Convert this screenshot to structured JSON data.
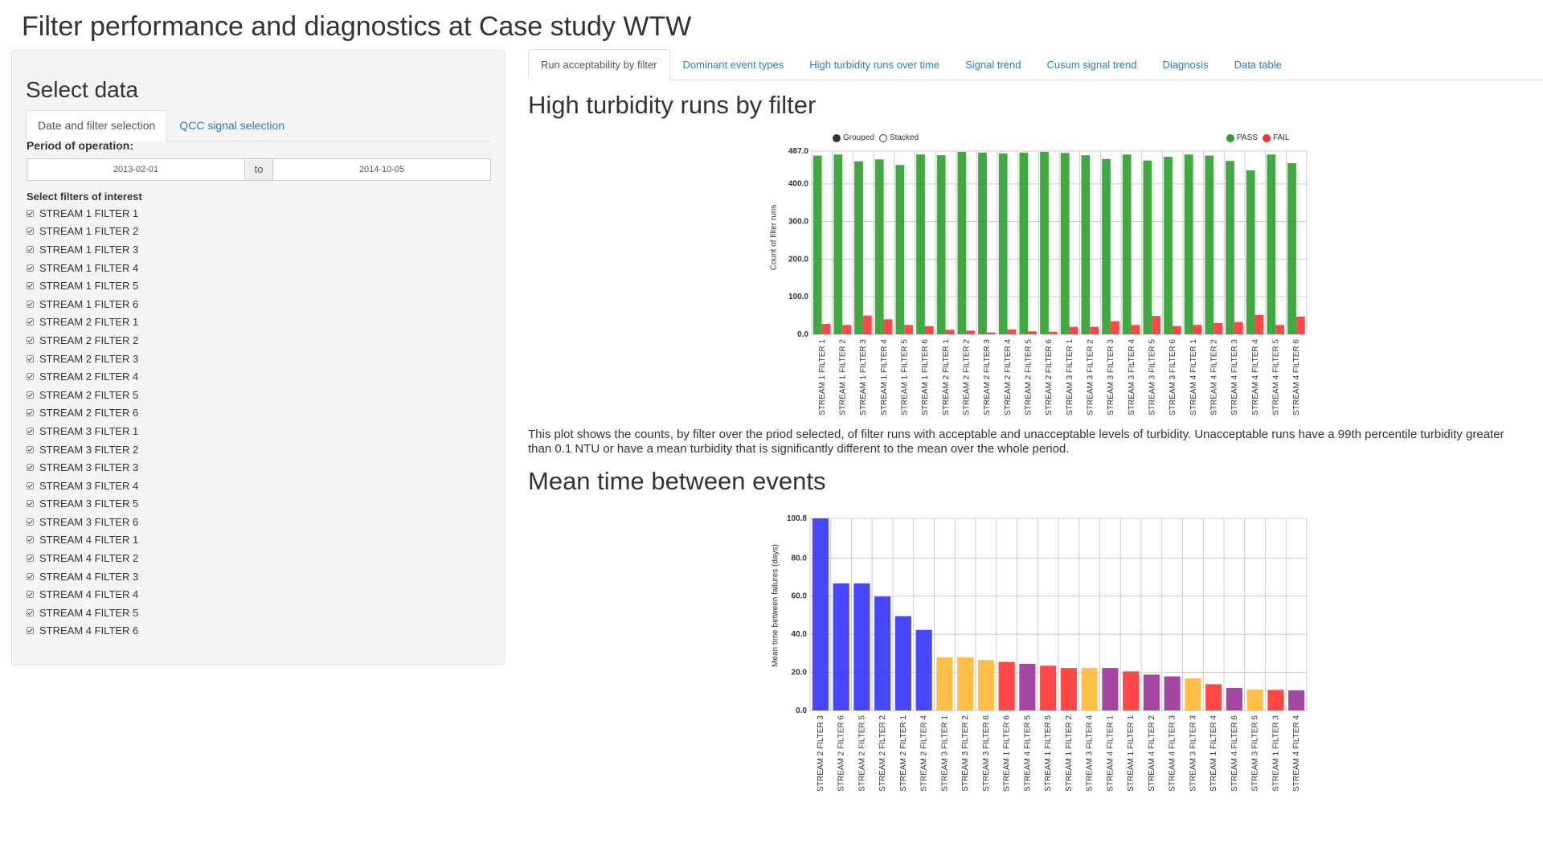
{
  "header": {
    "title": "Filter performance and diagnostics at Case study WTW"
  },
  "sidebar": {
    "title": "Select data",
    "tabs": [
      {
        "label": "Date and filter selection",
        "active": true
      },
      {
        "label": "QCC signal selection",
        "active": false
      }
    ],
    "period_label": "Period of operation:",
    "date_start": "2013-02-01",
    "date_sep": "to",
    "date_end": "2014-10-05",
    "filters_label": "Select filters of interest",
    "filters": [
      {
        "label": "STREAM 1 FILTER 1",
        "checked": true
      },
      {
        "label": "STREAM 1 FILTER 2",
        "checked": true
      },
      {
        "label": "STREAM 1 FILTER 3",
        "checked": true
      },
      {
        "label": "STREAM 1 FILTER 4",
        "checked": true
      },
      {
        "label": "STREAM 1 FILTER 5",
        "checked": true
      },
      {
        "label": "STREAM 1 FILTER 6",
        "checked": true
      },
      {
        "label": "STREAM 2 FILTER 1",
        "checked": true
      },
      {
        "label": "STREAM 2 FILTER 2",
        "checked": true
      },
      {
        "label": "STREAM 2 FILTER 3",
        "checked": true
      },
      {
        "label": "STREAM 2 FILTER 4",
        "checked": true
      },
      {
        "label": "STREAM 2 FILTER 5",
        "checked": true
      },
      {
        "label": "STREAM 2 FILTER 6",
        "checked": true
      },
      {
        "label": "STREAM 3 FILTER 1",
        "checked": true
      },
      {
        "label": "STREAM 3 FILTER 2",
        "checked": true
      },
      {
        "label": "STREAM 3 FILTER 3",
        "checked": true
      },
      {
        "label": "STREAM 3 FILTER 4",
        "checked": true
      },
      {
        "label": "STREAM 3 FILTER 5",
        "checked": true
      },
      {
        "label": "STREAM 3 FILTER 6",
        "checked": true
      },
      {
        "label": "STREAM 4 FILTER 1",
        "checked": true
      },
      {
        "label": "STREAM 4 FILTER 2",
        "checked": true
      },
      {
        "label": "STREAM 4 FILTER 3",
        "checked": true
      },
      {
        "label": "STREAM 4 FILTER 4",
        "checked": true
      },
      {
        "label": "STREAM 4 FILTER 5",
        "checked": true
      },
      {
        "label": "STREAM 4 FILTER 6",
        "checked": true
      }
    ]
  },
  "main": {
    "tabs": [
      {
        "label": "Run acceptability by filter",
        "active": true
      },
      {
        "label": "Dominant event types",
        "active": false
      },
      {
        "label": "High turbidity runs over time",
        "active": false
      },
      {
        "label": "Signal trend",
        "active": false
      },
      {
        "label": "Cusum signal trend",
        "active": false
      },
      {
        "label": "Diagnosis",
        "active": false
      },
      {
        "label": "Data table",
        "active": false
      }
    ],
    "section1_title": "High turbidity runs by filter",
    "caption": "This plot shows the counts, by filter over the priod selected, of filter runs with acceptable and unacceptable levels of turbidity. Unacceptable runs have a 99th percentile turbidity greater than 0.1 NTU or have a mean turbidity that is significantly different to the mean over the whole period.",
    "section2_title": "Mean time between events",
    "legend1": {
      "grouped": "Grouped",
      "stacked": "Stacked",
      "pass": "PASS",
      "fail": "FAIL"
    }
  },
  "colors": {
    "pass": "#2ca02c",
    "fail": "#ff3333",
    "blue": "#3333ff",
    "orange": "#ffb733",
    "red": "#ff3333",
    "purple": "#993399",
    "link": "#337ab7"
  },
  "chart_data": [
    {
      "type": "bar",
      "mode": "grouped",
      "title": "",
      "ylabel": "Count of filter runs",
      "ylim": [
        0,
        487
      ],
      "yticks": [
        "0.0",
        "100.0",
        "200.0",
        "300.0",
        "400.0",
        "487.0"
      ],
      "categories": [
        "STREAM 1 FILTER 1",
        "STREAM 1 FILTER 2",
        "STREAM 1 FILTER 3",
        "STREAM 1 FILTER 4",
        "STREAM 1 FILTER 5",
        "STREAM 1 FILTER 6",
        "STREAM 2 FILTER 1",
        "STREAM 2 FILTER 2",
        "STREAM 2 FILTER 3",
        "STREAM 2 FILTER 4",
        "STREAM 2 FILTER 5",
        "STREAM 2 FILTER 6",
        "STREAM 3 FILTER 1",
        "STREAM 3 FILTER 2",
        "STREAM 3 FILTER 3",
        "STREAM 3 FILTER 4",
        "STREAM 3 FILTER 5",
        "STREAM 3 FILTER 6",
        "STREAM 4 FILTER 1",
        "STREAM 4 FILTER 2",
        "STREAM 4 FILTER 3",
        "STREAM 4 FILTER 4",
        "STREAM 4 FILTER 5",
        "STREAM 4 FILTER 6"
      ],
      "series": [
        {
          "name": "PASS",
          "color": "#2ca02c",
          "values": [
            475,
            478,
            460,
            465,
            450,
            478,
            476,
            485,
            483,
            481,
            483,
            485,
            482,
            476,
            466,
            478,
            462,
            472,
            478,
            475,
            461,
            436,
            478,
            455
          ]
        },
        {
          "name": "FAIL",
          "color": "#ff3333",
          "values": [
            28,
            25,
            50,
            40,
            25,
            22,
            12,
            10,
            5,
            13,
            8,
            7,
            20,
            20,
            35,
            25,
            49,
            22,
            25,
            30,
            33,
            52,
            25,
            47
          ]
        }
      ],
      "legend": "top"
    },
    {
      "type": "bar",
      "title": "",
      "ylabel": "Mean time between failures (days)",
      "ylim": [
        0,
        100.8
      ],
      "yticks": [
        "0.0",
        "20.0",
        "40.0",
        "60.0",
        "80.0",
        "100.8"
      ],
      "categories": [
        "STREAM 2 FILTER 3",
        "STREAM 2 FILTER 6",
        "STREAM 2 FILTER 5",
        "STREAM 2 FILTER 2",
        "STREAM 2 FILTER 1",
        "STREAM 2 FILTER 4",
        "STREAM 3 FILTER 1",
        "STREAM 3 FILTER 2",
        "STREAM 3 FILTER 6",
        "STREAM 1 FILTER 6",
        "STREAM 4 FILTER 5",
        "STREAM 1 FILTER 5",
        "STREAM 1 FILTER 2",
        "STREAM 3 FILTER 4",
        "STREAM 4 FILTER 1",
        "STREAM 1 FILTER 1",
        "STREAM 4 FILTER 2",
        "STREAM 4 FILTER 3",
        "STREAM 3 FILTER 3",
        "STREAM 1 FILTER 4",
        "STREAM 4 FILTER 6",
        "STREAM 3 FILTER 5",
        "STREAM 1 FILTER 3",
        "STREAM 4 FILTER 4"
      ],
      "values": [
        100.8,
        66.7,
        66.7,
        59.8,
        49.5,
        42.3,
        28.0,
        28.0,
        26.5,
        25.5,
        24.5,
        23.5,
        22.3,
        22.3,
        22.3,
        20.5,
        18.8,
        17.9,
        16.8,
        13.8,
        11.8,
        11.0,
        10.8,
        10.6
      ],
      "colors": [
        "#3333ff",
        "#3333ff",
        "#3333ff",
        "#3333ff",
        "#3333ff",
        "#3333ff",
        "#ffb733",
        "#ffb733",
        "#ffb733",
        "#ff3333",
        "#993399",
        "#ff3333",
        "#ff3333",
        "#ffb733",
        "#993399",
        "#ff3333",
        "#993399",
        "#993399",
        "#ffb733",
        "#ff3333",
        "#993399",
        "#ffb733",
        "#ff3333",
        "#993399"
      ]
    }
  ]
}
